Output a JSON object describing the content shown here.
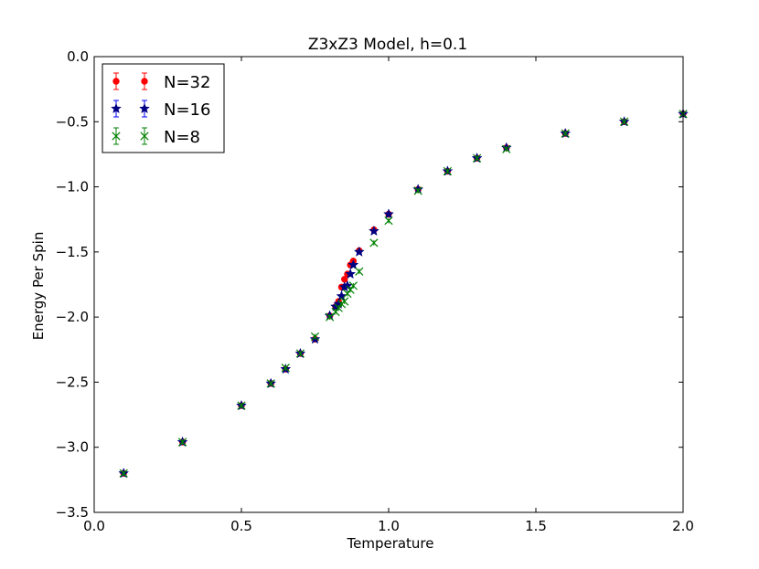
{
  "chart_data": {
    "type": "scatter",
    "title": "Z3xZ3 Model, h=0.1",
    "xlabel": "Temperature",
    "ylabel": "Energy Per Spin",
    "xlim": [
      0.0,
      2.0
    ],
    "ylim": [
      -3.5,
      0.0
    ],
    "xticks": [
      "0.0",
      "0.5",
      "1.0",
      "1.5",
      "2.0"
    ],
    "yticks": [
      "0.0",
      "−0.5",
      "−1.0",
      "−1.5",
      "−2.0",
      "−2.5",
      "−3.0",
      "−3.5"
    ],
    "grid": false,
    "legend_position": "top-left",
    "series": [
      {
        "name": "N=32",
        "color": "#ff0000",
        "marker": "dot",
        "points": [
          [
            0.1,
            -3.2
          ],
          [
            0.3,
            -2.96
          ],
          [
            0.5,
            -2.68
          ],
          [
            0.6,
            -2.51
          ],
          [
            0.65,
            -2.4
          ],
          [
            0.7,
            -2.28
          ],
          [
            0.75,
            -2.17
          ],
          [
            0.8,
            -1.99
          ],
          [
            0.82,
            -1.92
          ],
          [
            0.83,
            -1.88
          ],
          [
            0.84,
            -1.77
          ],
          [
            0.85,
            -1.71
          ],
          [
            0.86,
            -1.67
          ],
          [
            0.87,
            -1.6
          ],
          [
            0.88,
            -1.57
          ],
          [
            0.9,
            -1.49
          ],
          [
            0.95,
            -1.33
          ],
          [
            1.0,
            -1.21
          ],
          [
            1.1,
            -1.02
          ],
          [
            1.2,
            -0.88
          ],
          [
            1.3,
            -0.78
          ],
          [
            1.4,
            -0.7
          ],
          [
            1.6,
            -0.59
          ],
          [
            1.8,
            -0.5
          ],
          [
            2.0,
            -0.44
          ]
        ]
      },
      {
        "name": "N=16",
        "color": "#0000ff",
        "marker": "star",
        "points": [
          [
            0.1,
            -3.2
          ],
          [
            0.3,
            -2.96
          ],
          [
            0.5,
            -2.68
          ],
          [
            0.6,
            -2.51
          ],
          [
            0.65,
            -2.4
          ],
          [
            0.7,
            -2.28
          ],
          [
            0.75,
            -2.17
          ],
          [
            0.8,
            -1.99
          ],
          [
            0.82,
            -1.92
          ],
          [
            0.83,
            -1.9
          ],
          [
            0.84,
            -1.84
          ],
          [
            0.85,
            -1.77
          ],
          [
            0.86,
            -1.76
          ],
          [
            0.87,
            -1.67
          ],
          [
            0.88,
            -1.6
          ],
          [
            0.9,
            -1.5
          ],
          [
            0.95,
            -1.34
          ],
          [
            1.0,
            -1.21
          ],
          [
            1.1,
            -1.02
          ],
          [
            1.2,
            -0.88
          ],
          [
            1.3,
            -0.78
          ],
          [
            1.4,
            -0.7
          ],
          [
            1.6,
            -0.59
          ],
          [
            1.8,
            -0.5
          ],
          [
            2.0,
            -0.44
          ]
        ]
      },
      {
        "name": "N=8",
        "color": "#008000",
        "marker": "x",
        "points": [
          [
            0.1,
            -3.2
          ],
          [
            0.3,
            -2.96
          ],
          [
            0.5,
            -2.68
          ],
          [
            0.6,
            -2.51
          ],
          [
            0.65,
            -2.39
          ],
          [
            0.7,
            -2.28
          ],
          [
            0.75,
            -2.15
          ],
          [
            0.8,
            -2.0
          ],
          [
            0.82,
            -1.96
          ],
          [
            0.83,
            -1.93
          ],
          [
            0.84,
            -1.9
          ],
          [
            0.85,
            -1.88
          ],
          [
            0.86,
            -1.82
          ],
          [
            0.87,
            -1.79
          ],
          [
            0.88,
            -1.76
          ],
          [
            0.9,
            -1.65
          ],
          [
            0.95,
            -1.43
          ],
          [
            1.0,
            -1.26
          ],
          [
            1.1,
            -1.03
          ],
          [
            1.2,
            -0.88
          ],
          [
            1.3,
            -0.78
          ],
          [
            1.4,
            -0.71
          ],
          [
            1.6,
            -0.59
          ],
          [
            1.8,
            -0.5
          ],
          [
            2.0,
            -0.44
          ]
        ]
      }
    ]
  }
}
